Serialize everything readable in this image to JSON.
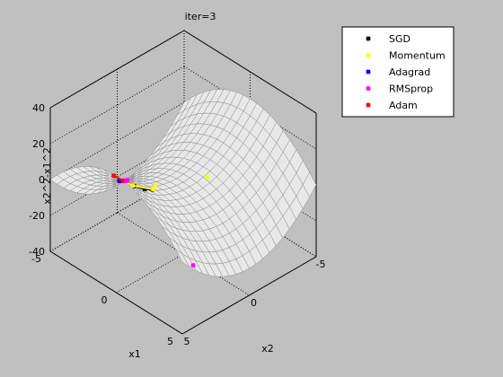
{
  "chart_data": {
    "type": "surface3d",
    "title": "iter=3",
    "xlabel": "x1",
    "ylabel": "x2",
    "zlabel": "x2^2-x1^2",
    "xlim": [
      -5,
      5
    ],
    "ylim": [
      -5,
      5
    ],
    "zlim": [
      -40,
      40
    ],
    "xticks": [
      "-5",
      "0",
      "5"
    ],
    "yticks": [
      "-5",
      "0",
      "5"
    ],
    "zticks": [
      "-40",
      "-20",
      "0",
      "20",
      "40"
    ],
    "grid": true,
    "legend_position": "top-right",
    "surface_color": "#e8e8e8",
    "surface_edge_color": "#8c8c8c",
    "series": [
      {
        "name": "SGD",
        "color": "#000000",
        "points": [
          [
            -0.05,
            4.5,
            20.0
          ],
          [
            -0.06,
            3.6,
            13.0
          ],
          [
            -0.08,
            2.8,
            7.8
          ],
          [
            -0.1,
            2.2,
            4.8
          ]
        ]
      },
      {
        "name": "Momentum",
        "color": "#ffff00",
        "points": [
          [
            -0.05,
            4.5,
            20.0
          ],
          [
            -0.07,
            3.7,
            13.7
          ],
          [
            -0.15,
            2.1,
            4.4
          ],
          [
            -0.6,
            1.5,
            1.9
          ]
        ]
      },
      {
        "name": "Adagrad",
        "color": "#0000ff",
        "points": [
          [
            -2.2,
            2.6,
            1.9
          ],
          [
            -2.25,
            2.55,
            1.44
          ],
          [
            -2.3,
            2.5,
            0.96
          ],
          [
            -2.35,
            2.45,
            0.48
          ]
        ]
      },
      {
        "name": "RMSprop",
        "color": "#ff00ff",
        "points": [
          [
            -2.8,
            1.5,
            -5.6
          ],
          [
            -2.85,
            1.45,
            -6.0
          ],
          [
            -2.9,
            1.4,
            -6.45
          ],
          [
            -3.2,
            1.0,
            -9.2
          ]
        ]
      },
      {
        "name": "Adam",
        "color": "#ff0000",
        "points": [
          [
            -0.7,
            4.5,
            19.8
          ],
          [
            -1.0,
            3.5,
            11.25
          ],
          [
            -1.5,
            3.0,
            6.75
          ],
          [
            -2.0,
            2.5,
            2.25
          ]
        ]
      }
    ],
    "stray_markers": [
      {
        "series": "Momentum",
        "point": [
          0.3,
          -1.5,
          -2.2
        ]
      },
      {
        "series": "RMSprop",
        "point": [
          4.8,
          4.0,
          -7.0
        ]
      }
    ]
  }
}
